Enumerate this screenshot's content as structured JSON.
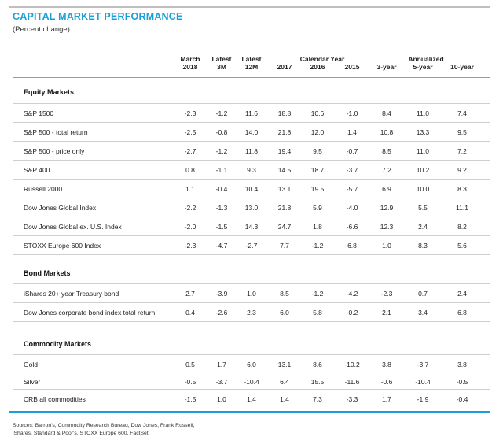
{
  "title": "CAPITAL MARKET PERFORMANCE",
  "subtitle": "(Percent change)",
  "columns": [
    {
      "line1": "March",
      "line2": "2018"
    },
    {
      "line1": "Latest",
      "line2": "3M"
    },
    {
      "line1": "Latest",
      "line2": "12M"
    },
    {
      "line1": "",
      "line2": "2017"
    },
    {
      "line1": "",
      "line2": "2016"
    },
    {
      "line1": "",
      "line2": "2015"
    },
    {
      "line1": "",
      "line2": "3-year"
    },
    {
      "line1": "",
      "line2": "5-year"
    },
    {
      "line1": "",
      "line2": "10-year"
    }
  ],
  "group_calendar": "Calendar Year",
  "group_annualized": "Annualized",
  "sections": [
    {
      "name": "Equity Markets",
      "rows": [
        {
          "label": "S&P 1500",
          "values": [
            "-2.3",
            "-1.2",
            "11.6",
            "18.8",
            "10.6",
            "-1.0",
            "8.4",
            "11.0",
            "7.4"
          ]
        },
        {
          "label": "S&P 500 - total return",
          "values": [
            "-2.5",
            "-0.8",
            "14.0",
            "21.8",
            "12.0",
            "1.4",
            "10.8",
            "13.3",
            "9.5"
          ]
        },
        {
          "label": "S&P 500 - price only",
          "values": [
            "-2.7",
            "-1.2",
            "11.8",
            "19.4",
            "9.5",
            "-0.7",
            "8.5",
            "11.0",
            "7.2"
          ]
        },
        {
          "label": "S&P 400",
          "values": [
            "0.8",
            "-1.1",
            "9.3",
            "14.5",
            "18.7",
            "-3.7",
            "7.2",
            "10.2",
            "9.2"
          ]
        },
        {
          "label": "Russell 2000",
          "values": [
            "1.1",
            "-0.4",
            "10.4",
            "13.1",
            "19.5",
            "-5.7",
            "6.9",
            "10.0",
            "8.3"
          ]
        },
        {
          "label": "Dow Jones Global Index",
          "values": [
            "-2.2",
            "-1.3",
            "13.0",
            "21.8",
            "5.9",
            "-4.0",
            "12.9",
            "5.5",
            "11.1"
          ]
        },
        {
          "label": "Dow Jones Global ex. U.S. Index",
          "values": [
            "-2.0",
            "-1.5",
            "14.3",
            "24.7",
            "1.8",
            "-6.6",
            "12.3",
            "2.4",
            "8.2"
          ]
        },
        {
          "label": "STOXX Europe 600 Index",
          "values": [
            "-2.3",
            "-4.7",
            "-2.7",
            "7.7",
            "-1.2",
            "6.8",
            "1.0",
            "8.3",
            "5.6"
          ]
        }
      ]
    },
    {
      "name": "Bond Markets",
      "rows": [
        {
          "label": "iShares 20+ year Treasury bond",
          "values": [
            "2.7",
            "-3.9",
            "1.0",
            "8.5",
            "-1.2",
            "-4.2",
            "-2.3",
            "0.7",
            "2.4"
          ]
        },
        {
          "label": "Dow Jones corporate bond index total return",
          "values": [
            "0.4",
            "-2.6",
            "2.3",
            "6.0",
            "5.8",
            "-0.2",
            "2.1",
            "3.4",
            "6.8"
          ]
        }
      ]
    },
    {
      "name": "Commodity Markets",
      "rows": [
        {
          "label": "Gold",
          "values": [
            "0.5",
            "1.7",
            "6.0",
            "13.1",
            "8.6",
            "-10.2",
            "3.8",
            "-3.7",
            "3.8"
          ]
        },
        {
          "label": "Silver",
          "values": [
            "-0.5",
            "-3.7",
            "-10.4",
            "6.4",
            "15.5",
            "-11.6",
            "-0.6",
            "-10.4",
            "-0.5"
          ]
        },
        {
          "label": "CRB all commodities",
          "values": [
            "-1.5",
            "1.0",
            "1.4",
            "1.4",
            "7.3",
            "-3.3",
            "1.7",
            "-1.9",
            "-0.4"
          ]
        }
      ]
    }
  ],
  "sources_line1": "Sources: Barron's, Commodity Research Bureau, Dow Jones, Frank Russell,",
  "sources_line2": "iShares, Standard & Poor's, STOXX Europe 600, FactSet."
}
